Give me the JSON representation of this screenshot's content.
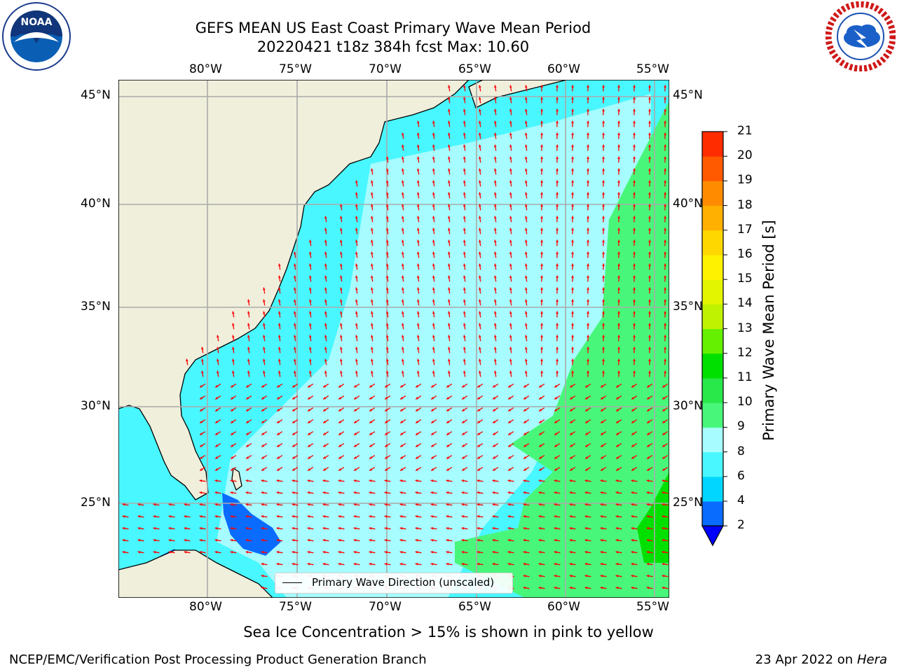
{
  "title": {
    "line1": "GEFS MEAN US East Coast Primary Wave Mean Period",
    "line2": "20220421 t18z 384h fcst   Max: 10.60"
  },
  "logos": {
    "left": {
      "icon": "noaa-logo",
      "text": "NOAA",
      "ring_text": "NATIONAL OCEANIC AND ATMOSPHERIC ADMINISTRATION · U.S. DEPARTMENT OF COMMERCE"
    },
    "right": {
      "icon": "nws-logo",
      "ring_text": "NATIONAL WEATHER SERVICE"
    }
  },
  "map": {
    "lon_labels": [
      "80°W",
      "75°W",
      "70°W",
      "65°W",
      "60°W",
      "55°W"
    ],
    "lat_labels": [
      "45°N",
      "40°N",
      "35°N",
      "30°N",
      "25°N"
    ],
    "legend_label": "Primary Wave Direction (unscaled)",
    "arrow_color": "#ff0000",
    "land_color": "#efefdc",
    "grid": true
  },
  "colorbar": {
    "label": "Primary Wave Mean Period [s]",
    "ticks": [
      "2",
      "4",
      "6",
      "8",
      "9",
      "10",
      "11",
      "12",
      "13",
      "14",
      "15",
      "16",
      "17",
      "18",
      "19",
      "20",
      "21"
    ],
    "colors": [
      "#0a6cff",
      "#00d6ff",
      "#48f7ff",
      "#a6fcff",
      "#48f77a",
      "#28e84a",
      "#00e000",
      "#64f000",
      "#bff200",
      "#e4f500",
      "#fff200",
      "#ffd700",
      "#ffb000",
      "#ff8c00",
      "#ff5a00",
      "#ff2c00",
      "#ff0000"
    ],
    "under_color": "#0000ff"
  },
  "footer": {
    "center_note": "Sea Ice Concentration > 15% is shown in pink to yellow",
    "left": "NCEP/EMC/Verification Post Processing Product Generation Branch",
    "right_prefix": "23 Apr 2022 on ",
    "right_machine": "Hera"
  }
}
